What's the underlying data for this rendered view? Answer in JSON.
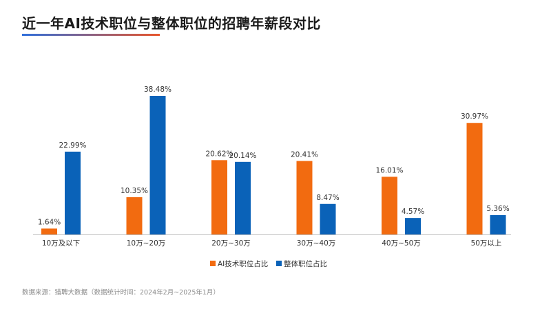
{
  "page": {
    "title": "近一年AI技术职位与整体职位的招聘年薪段对比",
    "source": "数据来源：猎聘大数据（数据统计时间：2024年2月~2025年1月）"
  },
  "colors": {
    "ai": "#f26b10",
    "overall": "#0a62b8",
    "baseline": "#bfbfbf"
  },
  "chart_data": {
    "type": "bar",
    "title": "近一年AI技术职位与整体职位的招聘年薪段对比",
    "xlabel": "",
    "ylabel": "",
    "ylim": [
      0,
      40
    ],
    "grid": false,
    "legend_position": "bottom",
    "categories": [
      "10万及以下",
      "10万~20万",
      "20万~30万",
      "30万~40万",
      "40万~50万",
      "50万以上"
    ],
    "series": [
      {
        "name": "AI技术职位占比",
        "values": [
          1.64,
          10.35,
          20.62,
          20.41,
          16.01,
          30.97
        ],
        "labels": [
          "1.64%",
          "10.35%",
          "20.62%",
          "20.41%",
          "16.01%",
          "30.97%"
        ]
      },
      {
        "name": "整体职位占比",
        "values": [
          22.99,
          38.48,
          20.14,
          8.47,
          4.57,
          5.36
        ],
        "labels": [
          "22.99%",
          "38.48%",
          "20.14%",
          "8.47%",
          "4.57%",
          "5.36%"
        ]
      }
    ]
  }
}
